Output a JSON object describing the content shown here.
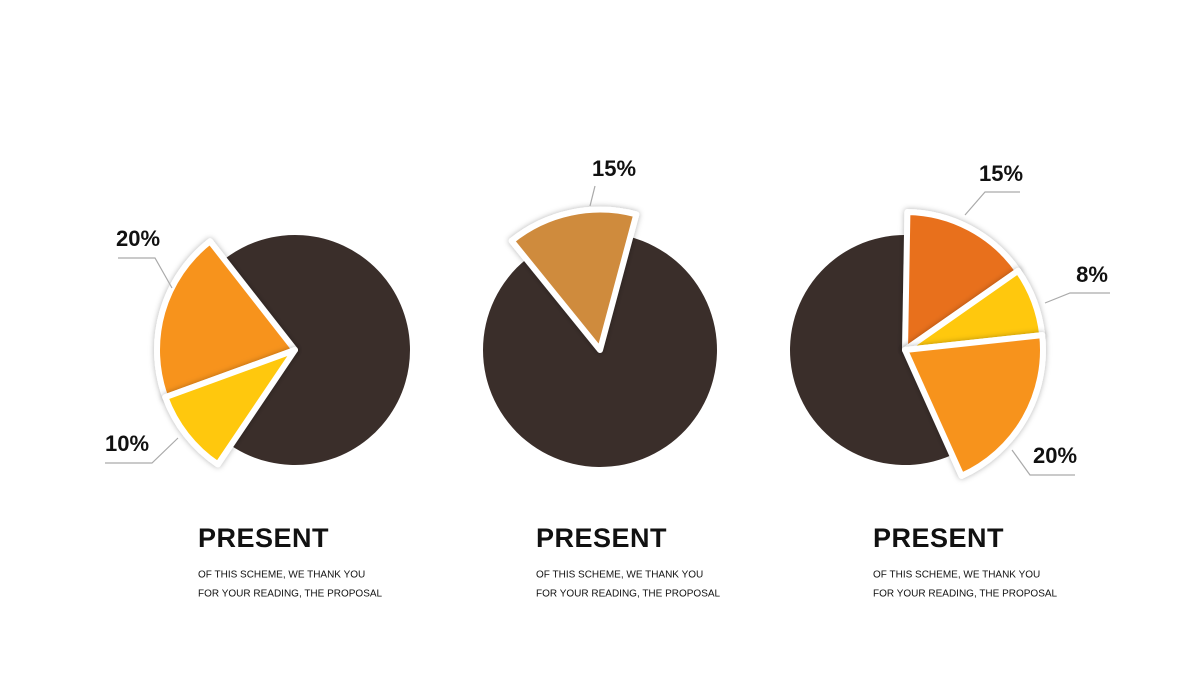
{
  "chart_data": [
    {
      "type": "pie",
      "values": [
        20,
        10,
        70
      ],
      "value_labels": [
        "20%",
        "10%",
        null
      ],
      "colors": [
        "#f7931e",
        "#ffc80d",
        "#3a2e2a"
      ],
      "title": "PRESENT",
      "subtitle": [
        "OF THIS SCHEME, WE THANK YOU",
        "FOR YOUR READING, THE PROPOSAL"
      ]
    },
    {
      "type": "pie",
      "values": [
        15,
        85
      ],
      "value_labels": [
        "15%",
        null
      ],
      "colors": [
        "#cf8b3e",
        "#3a2e2a"
      ],
      "title": "PRESENT",
      "subtitle": [
        "OF THIS SCHEME, WE THANK YOU",
        "FOR YOUR READING, THE PROPOSAL"
      ]
    },
    {
      "type": "pie",
      "values": [
        15,
        8,
        20,
        57
      ],
      "value_labels": [
        "15%",
        "8%",
        "20%",
        null
      ],
      "colors": [
        "#e8701a",
        "#ffc80d",
        "#f7931e",
        "#3a2e2a"
      ],
      "title": "PRESENT",
      "subtitle": [
        "OF THIS SCHEME, WE THANK YOU",
        "FOR YOUR READING, THE PROPOSAL"
      ]
    }
  ]
}
